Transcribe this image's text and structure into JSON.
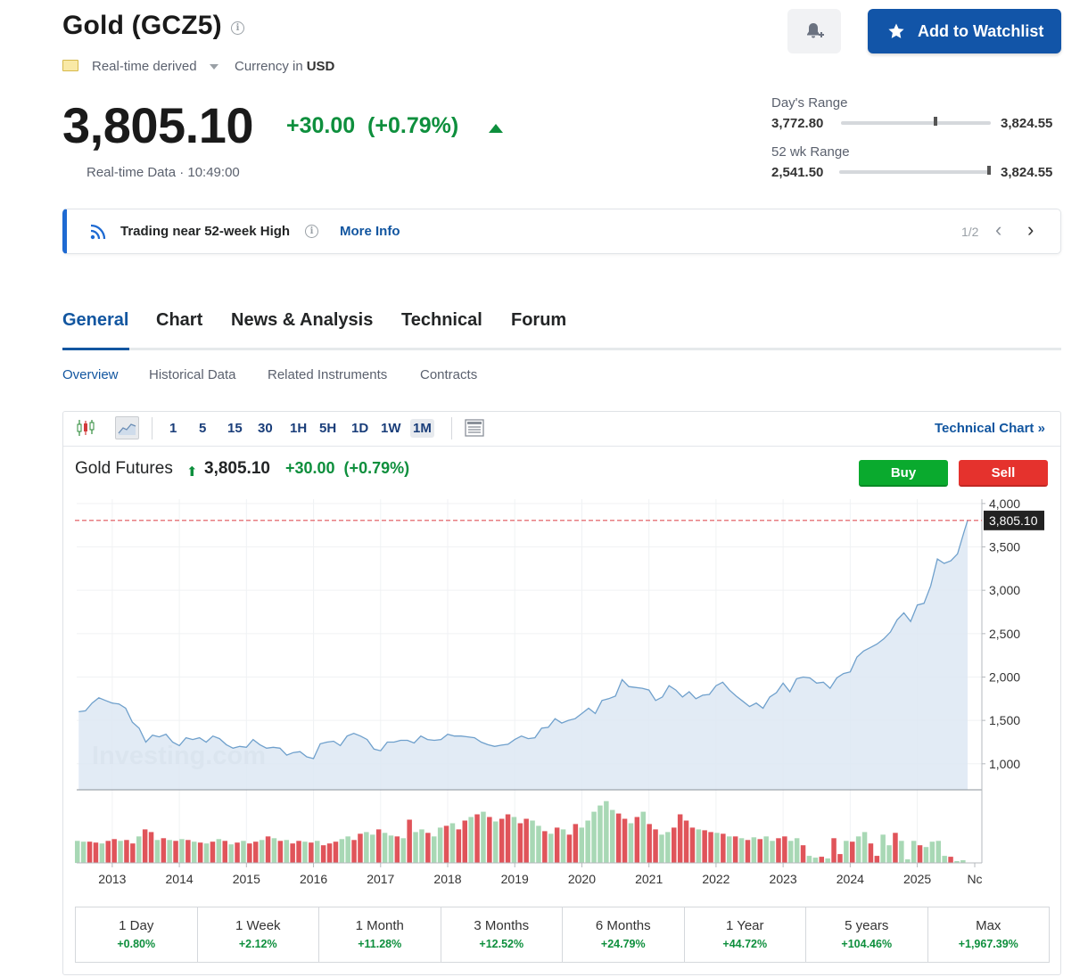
{
  "header": {
    "title": "Gold (GCZ5)",
    "realtime_label": "Real-time derived",
    "currency_label": "Currency in",
    "currency_value": "USD",
    "watchlist_label": "Add to Watchlist"
  },
  "quote": {
    "price": "3,805.10",
    "change": "+30.00  (+0.79%)",
    "timestamp": "Real-time Data · 10:49:00"
  },
  "ranges": {
    "day": {
      "label": "Day's Range",
      "low": "3,772.80",
      "high": "3,824.55",
      "position": 0.63
    },
    "week52": {
      "label": "52 wk Range",
      "low": "2,541.50",
      "high": "3,824.55",
      "position": 0.99
    }
  },
  "alert": {
    "text": "Trading near 52-week High",
    "link": "More Info",
    "pager": "1/2"
  },
  "tabs": [
    "General",
    "Chart",
    "News & Analysis",
    "Technical",
    "Forum"
  ],
  "subtabs": [
    "Overview",
    "Historical Data",
    "Related Instruments",
    "Contracts"
  ],
  "toolbar": {
    "intervals": [
      "1",
      "5",
      "15",
      "30",
      "1H",
      "5H",
      "1D",
      "1W",
      "1M"
    ],
    "active_interval": "1M",
    "technical_chart": "Technical Chart »"
  },
  "chart_header": {
    "name": "Gold Futures",
    "price": "3,805.10",
    "change": "+30.00  (+0.79%)",
    "buy": "Buy",
    "sell": "Sell"
  },
  "chart_data": {
    "type": "area",
    "title": "Gold Futures",
    "last_price": 3805.1,
    "last_price_label": "3,805.10",
    "ylim": [
      700,
      4050
    ],
    "y_ticks": [
      1000,
      1500,
      2000,
      2500,
      3000,
      3500,
      4000
    ],
    "y_tick_labels": [
      "1,000",
      "1,500",
      "2,000",
      "2,500",
      "3,000",
      "3,500",
      "4,000"
    ],
    "x_tick_labels": [
      "2013",
      "2014",
      "2015",
      "2016",
      "2017",
      "2018",
      "2019",
      "2020",
      "2021",
      "2022",
      "2023",
      "2024",
      "2025",
      "Nc"
    ],
    "x_start": 2012.47,
    "x_end": 2025.75,
    "watermark": "Investing.com",
    "series": [
      {
        "values": [
          [
            2012.5,
            1600
          ],
          [
            2012.6,
            1610
          ],
          [
            2012.7,
            1700
          ],
          [
            2012.8,
            1760
          ],
          [
            2012.9,
            1730
          ],
          [
            2013.0,
            1700
          ],
          [
            2013.1,
            1690
          ],
          [
            2013.2,
            1640
          ],
          [
            2013.3,
            1480
          ],
          [
            2013.4,
            1410
          ],
          [
            2013.5,
            1250
          ],
          [
            2013.6,
            1330
          ],
          [
            2013.7,
            1310
          ],
          [
            2013.8,
            1340
          ],
          [
            2013.9,
            1250
          ],
          [
            2014.0,
            1210
          ],
          [
            2014.1,
            1300
          ],
          [
            2014.2,
            1280
          ],
          [
            2014.3,
            1300
          ],
          [
            2014.4,
            1250
          ],
          [
            2014.5,
            1320
          ],
          [
            2014.6,
            1290
          ],
          [
            2014.7,
            1220
          ],
          [
            2014.8,
            1180
          ],
          [
            2014.9,
            1200
          ],
          [
            2015.0,
            1190
          ],
          [
            2015.1,
            1280
          ],
          [
            2015.2,
            1220
          ],
          [
            2015.3,
            1180
          ],
          [
            2015.4,
            1190
          ],
          [
            2015.5,
            1180
          ],
          [
            2015.6,
            1100
          ],
          [
            2015.7,
            1130
          ],
          [
            2015.8,
            1140
          ],
          [
            2015.9,
            1080
          ],
          [
            2016.0,
            1060
          ],
          [
            2016.1,
            1230
          ],
          [
            2016.2,
            1250
          ],
          [
            2016.3,
            1260
          ],
          [
            2016.4,
            1210
          ],
          [
            2016.5,
            1320
          ],
          [
            2016.6,
            1350
          ],
          [
            2016.7,
            1320
          ],
          [
            2016.8,
            1280
          ],
          [
            2016.9,
            1170
          ],
          [
            2017.0,
            1150
          ],
          [
            2017.1,
            1250
          ],
          [
            2017.2,
            1250
          ],
          [
            2017.3,
            1270
          ],
          [
            2017.4,
            1270
          ],
          [
            2017.5,
            1240
          ],
          [
            2017.6,
            1320
          ],
          [
            2017.7,
            1280
          ],
          [
            2017.8,
            1270
          ],
          [
            2017.9,
            1280
          ],
          [
            2018.0,
            1340
          ],
          [
            2018.1,
            1320
          ],
          [
            2018.2,
            1320
          ],
          [
            2018.3,
            1310
          ],
          [
            2018.4,
            1300
          ],
          [
            2018.5,
            1250
          ],
          [
            2018.6,
            1220
          ],
          [
            2018.7,
            1200
          ],
          [
            2018.8,
            1215
          ],
          [
            2018.9,
            1225
          ],
          [
            2019.0,
            1280
          ],
          [
            2019.1,
            1320
          ],
          [
            2019.2,
            1290
          ],
          [
            2019.3,
            1300
          ],
          [
            2019.4,
            1410
          ],
          [
            2019.5,
            1420
          ],
          [
            2019.6,
            1520
          ],
          [
            2019.7,
            1470
          ],
          [
            2019.8,
            1500
          ],
          [
            2019.9,
            1520
          ],
          [
            2020.0,
            1580
          ],
          [
            2020.1,
            1640
          ],
          [
            2020.2,
            1580
          ],
          [
            2020.3,
            1730
          ],
          [
            2020.4,
            1750
          ],
          [
            2020.5,
            1780
          ],
          [
            2020.6,
            1970
          ],
          [
            2020.7,
            1890
          ],
          [
            2020.8,
            1880
          ],
          [
            2020.9,
            1870
          ],
          [
            2021.0,
            1850
          ],
          [
            2021.1,
            1730
          ],
          [
            2021.2,
            1770
          ],
          [
            2021.3,
            1900
          ],
          [
            2021.4,
            1850
          ],
          [
            2021.5,
            1770
          ],
          [
            2021.6,
            1830
          ],
          [
            2021.7,
            1750
          ],
          [
            2021.8,
            1790
          ],
          [
            2021.9,
            1800
          ],
          [
            2022.0,
            1900
          ],
          [
            2022.1,
            1940
          ],
          [
            2022.2,
            1850
          ],
          [
            2022.3,
            1780
          ],
          [
            2022.4,
            1720
          ],
          [
            2022.5,
            1660
          ],
          [
            2022.6,
            1700
          ],
          [
            2022.7,
            1640
          ],
          [
            2022.8,
            1770
          ],
          [
            2022.9,
            1820
          ],
          [
            2023.0,
            1930
          ],
          [
            2023.1,
            1830
          ],
          [
            2023.2,
            1980
          ],
          [
            2023.3,
            2000
          ],
          [
            2023.4,
            1990
          ],
          [
            2023.5,
            1930
          ],
          [
            2023.6,
            1940
          ],
          [
            2023.7,
            1870
          ],
          [
            2023.8,
            1990
          ],
          [
            2023.9,
            2040
          ],
          [
            2024.0,
            2060
          ],
          [
            2024.1,
            2230
          ],
          [
            2024.2,
            2300
          ],
          [
            2024.3,
            2340
          ],
          [
            2024.4,
            2380
          ],
          [
            2024.5,
            2440
          ],
          [
            2024.6,
            2520
          ],
          [
            2024.7,
            2660
          ],
          [
            2024.8,
            2740
          ],
          [
            2024.9,
            2640
          ],
          [
            2025.0,
            2830
          ],
          [
            2025.1,
            2850
          ],
          [
            2025.2,
            3050
          ],
          [
            2025.3,
            3360
          ],
          [
            2025.4,
            3310
          ],
          [
            2025.5,
            3340
          ],
          [
            2025.6,
            3420
          ],
          [
            2025.7,
            3680
          ],
          [
            2025.75,
            3805
          ]
        ]
      }
    ],
    "volume": {
      "up_color": "#a8d8b5",
      "down_color": "#e0545a",
      "bars": [
        [
          25,
          1
        ],
        [
          24,
          1
        ],
        [
          24,
          0
        ],
        [
          23,
          0
        ],
        [
          22,
          1
        ],
        [
          25,
          0
        ],
        [
          27,
          0
        ],
        [
          25,
          1
        ],
        [
          26,
          0
        ],
        [
          22,
          0
        ],
        [
          30,
          1
        ],
        [
          38,
          0
        ],
        [
          35,
          0
        ],
        [
          26,
          1
        ],
        [
          28,
          0
        ],
        [
          26,
          1
        ],
        [
          25,
          0
        ],
        [
          27,
          1
        ],
        [
          26,
          0
        ],
        [
          24,
          1
        ],
        [
          23,
          0
        ],
        [
          22,
          1
        ],
        [
          24,
          0
        ],
        [
          27,
          1
        ],
        [
          25,
          0
        ],
        [
          21,
          1
        ],
        [
          23,
          0
        ],
        [
          25,
          1
        ],
        [
          22,
          0
        ],
        [
          24,
          0
        ],
        [
          26,
          1
        ],
        [
          30,
          0
        ],
        [
          28,
          1
        ],
        [
          25,
          0
        ],
        [
          26,
          1
        ],
        [
          22,
          0
        ],
        [
          25,
          0
        ],
        [
          24,
          1
        ],
        [
          23,
          0
        ],
        [
          25,
          1
        ],
        [
          20,
          0
        ],
        [
          22,
          0
        ],
        [
          24,
          0
        ],
        [
          27,
          1
        ],
        [
          30,
          1
        ],
        [
          26,
          0
        ],
        [
          33,
          0
        ],
        [
          35,
          1
        ],
        [
          32,
          1
        ],
        [
          38,
          0
        ],
        [
          34,
          1
        ],
        [
          31,
          1
        ],
        [
          30,
          0
        ],
        [
          28,
          1
        ],
        [
          49,
          0
        ],
        [
          35,
          1
        ],
        [
          38,
          1
        ],
        [
          34,
          0
        ],
        [
          30,
          1
        ],
        [
          40,
          1
        ],
        [
          42,
          0
        ],
        [
          45,
          1
        ],
        [
          38,
          0
        ],
        [
          48,
          0
        ],
        [
          52,
          1
        ],
        [
          55,
          0
        ],
        [
          58,
          1
        ],
        [
          52,
          0
        ],
        [
          47,
          1
        ],
        [
          50,
          0
        ],
        [
          55,
          0
        ],
        [
          52,
          1
        ],
        [
          45,
          0
        ],
        [
          50,
          0
        ],
        [
          48,
          1
        ],
        [
          42,
          1
        ],
        [
          36,
          0
        ],
        [
          33,
          1
        ],
        [
          40,
          0
        ],
        [
          38,
          1
        ],
        [
          32,
          0
        ],
        [
          44,
          0
        ],
        [
          40,
          1
        ],
        [
          48,
          1
        ],
        [
          58,
          1
        ],
        [
          65,
          1
        ],
        [
          70,
          1
        ],
        [
          60,
          1
        ],
        [
          56,
          0
        ],
        [
          50,
          0
        ],
        [
          45,
          1
        ],
        [
          52,
          0
        ],
        [
          58,
          1
        ],
        [
          44,
          0
        ],
        [
          38,
          0
        ],
        [
          32,
          1
        ],
        [
          35,
          1
        ],
        [
          40,
          0
        ],
        [
          55,
          0
        ],
        [
          48,
          0
        ],
        [
          40,
          0
        ],
        [
          38,
          1
        ],
        [
          37,
          0
        ],
        [
          35,
          0
        ],
        [
          34,
          1
        ],
        [
          33,
          0
        ],
        [
          30,
          1
        ],
        [
          30,
          0
        ],
        [
          28,
          1
        ],
        [
          26,
          0
        ],
        [
          29,
          1
        ],
        [
          27,
          0
        ],
        [
          30,
          1
        ],
        [
          25,
          1
        ],
        [
          28,
          0
        ],
        [
          30,
          0
        ],
        [
          25,
          1
        ],
        [
          28,
          1
        ],
        [
          20,
          0
        ],
        [
          8,
          1
        ],
        [
          6,
          1
        ],
        [
          7,
          0
        ],
        [
          5,
          1
        ],
        [
          28,
          0
        ],
        [
          10,
          0
        ],
        [
          25,
          1
        ],
        [
          24,
          0
        ],
        [
          30,
          1
        ],
        [
          35,
          1
        ],
        [
          22,
          0
        ],
        [
          8,
          0
        ],
        [
          32,
          1
        ],
        [
          20,
          1
        ],
        [
          34,
          0
        ],
        [
          25,
          1
        ],
        [
          4,
          1
        ],
        [
          25,
          1
        ],
        [
          20,
          0
        ],
        [
          18,
          1
        ],
        [
          24,
          1
        ],
        [
          25,
          1
        ],
        [
          8,
          1
        ],
        [
          7,
          0
        ],
        [
          2,
          1
        ],
        [
          3,
          1
        ]
      ]
    }
  },
  "performance": [
    {
      "label": "1 Day",
      "value": "+0.80%"
    },
    {
      "label": "1 Week",
      "value": "+2.12%"
    },
    {
      "label": "1 Month",
      "value": "+11.28%"
    },
    {
      "label": "3 Months",
      "value": "+12.52%"
    },
    {
      "label": "6 Months",
      "value": "+24.79%"
    },
    {
      "label": "1 Year",
      "value": "+44.72%"
    },
    {
      "label": "5 years",
      "value": "+104.46%"
    },
    {
      "label": "Max",
      "value": "+1,967.39%"
    }
  ]
}
